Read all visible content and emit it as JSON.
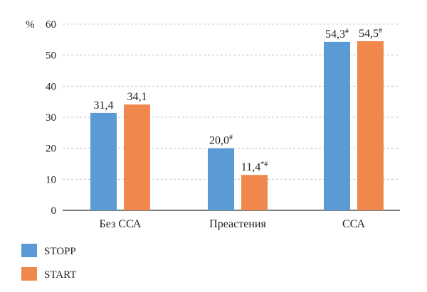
{
  "chart_data": {
    "type": "bar",
    "ylabel": "%",
    "ylim": [
      0,
      60
    ],
    "yticks": [
      "0",
      "10",
      "20",
      "30",
      "40",
      "50",
      "60"
    ],
    "grid": true,
    "legend_position": "bottom-left",
    "categories": [
      "Без ССА",
      "Преастения",
      "ССА"
    ],
    "series": [
      {
        "name": "STOPP",
        "color": "#5b9bd5",
        "values": [
          31.4,
          20.0,
          54.3
        ],
        "labels": [
          "31,4",
          "20,0",
          "54,3"
        ],
        "label_marks": [
          "",
          "#",
          "#"
        ]
      },
      {
        "name": "START",
        "color": "#f0884e",
        "values": [
          34.1,
          11.4,
          54.5
        ],
        "labels": [
          "34,1",
          "11,4",
          "54,5"
        ],
        "label_marks": [
          "",
          "*#",
          "#"
        ]
      }
    ]
  }
}
